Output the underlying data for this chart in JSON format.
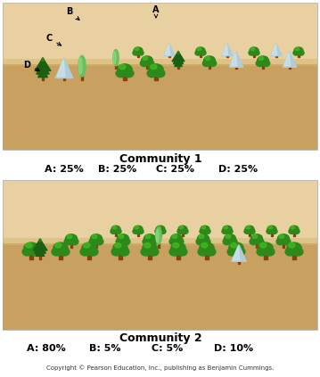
{
  "title1": "Community 1",
  "title2": "Community 2",
  "label1_parts": [
    "A: 25%",
    "B: 25%",
    "C: 25%",
    "D: 25%"
  ],
  "label2_parts": [
    "A: 80%",
    "B: 5%",
    "C: 5%",
    "D: 10%"
  ],
  "copyright": "Copyright © Pearson Education, Inc., publishing as Benjamin Cummings.",
  "panel_bg": "#e8d0a0",
  "ground_color": "#c8a060",
  "fig_bg": "#ffffff",
  "tree_A_color": "#2d8a1a",
  "tree_A_light": "#44bb22",
  "tree_B_color": "#6abf5e",
  "tree_B_light": "#90dd80",
  "tree_C_color": "#b0ccd8",
  "tree_C_light": "#d0e8f0",
  "tree_D_color": "#1a6010",
  "tree_D_light": "#2a8a1a",
  "trunk_color": "#8B4010",
  "title_fontsize": 9,
  "label_fontsize": 8,
  "copyright_fontsize": 5
}
